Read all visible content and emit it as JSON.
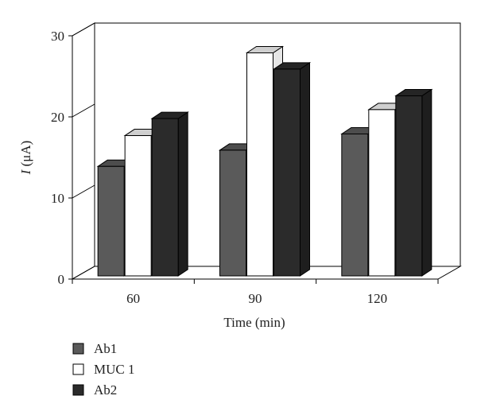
{
  "chart_data": {
    "type": "bar",
    "style": "3d-clustered",
    "categories": [
      "60",
      "90",
      "120"
    ],
    "series": [
      {
        "name": "Ab1",
        "values": [
          13.5,
          15.5,
          17.5
        ],
        "color": "#5a5a5a"
      },
      {
        "name": "MUC 1",
        "values": [
          17.3,
          27.5,
          20.5
        ],
        "color": "#ffffff"
      },
      {
        "name": "Ab2",
        "values": [
          19.4,
          25.5,
          22.2
        ],
        "color": "#2b2b2b"
      }
    ],
    "xlabel": "Time (min)",
    "ylabel_italic": "I",
    "ylabel_rest": " (μA)",
    "ylim": [
      0,
      30
    ],
    "yticks": [
      "0",
      "10",
      "20",
      "30"
    ],
    "grid": false,
    "legend_position": "bottom-left"
  }
}
